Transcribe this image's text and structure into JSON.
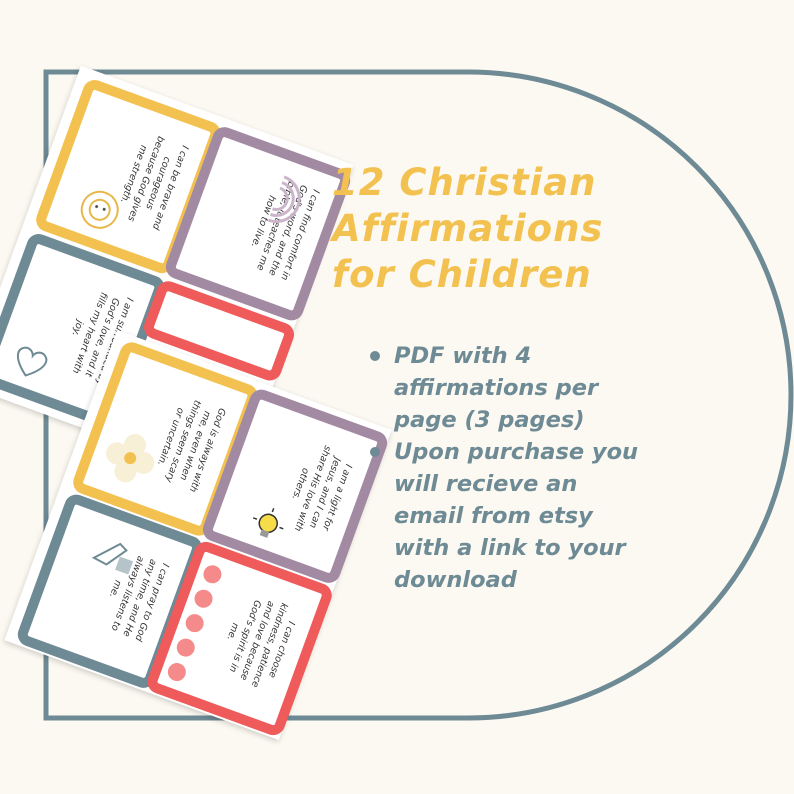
{
  "title": {
    "line1": "12 Christian",
    "line2": "Affirmations",
    "line3": "for Children"
  },
  "bullets": [
    "PDF with 4 affirmations per page (3 pages)",
    "Upon purchase you will recieve an email from etsy with a link to your download"
  ],
  "colors": {
    "background": "#fbf9f1",
    "frame": "#6e8a95",
    "title": "#f3c14f",
    "bullet_text": "#6e8a95",
    "card_yellow": "#f3c14f",
    "card_purple": "#a38aa3",
    "card_teal": "#6e8a95",
    "card_red": "#ef5a5a"
  },
  "cards": [
    {
      "text": "I can be brave and courageous because God gives me strength.",
      "color": "yellow",
      "icon": "lion-icon"
    },
    {
      "text": "I can find comfort in God's word, and the bible, it teaches me how to live.",
      "color": "purple",
      "icon": "rainbow-icon"
    },
    {
      "text": "I am surrounded by God's love, and it fills my heart with joy.",
      "color": "teal",
      "icon": "heart-icon"
    },
    {
      "text": "God is always with me, even when things seem scary or uncertain.",
      "color": "yellow",
      "icon": "flower-icon"
    },
    {
      "text": "I am a light for Jesus, and I can share His love with others.",
      "color": "purple",
      "icon": "lightbulb-icon"
    },
    {
      "text": "I can pray to God any time, and He always listens to me.",
      "color": "teal",
      "icon": "praying-hands-icon"
    },
    {
      "text": "I can choose kindness, patience and love because God's spirit is in me.",
      "color": "red",
      "icon": "dots-icon"
    }
  ]
}
